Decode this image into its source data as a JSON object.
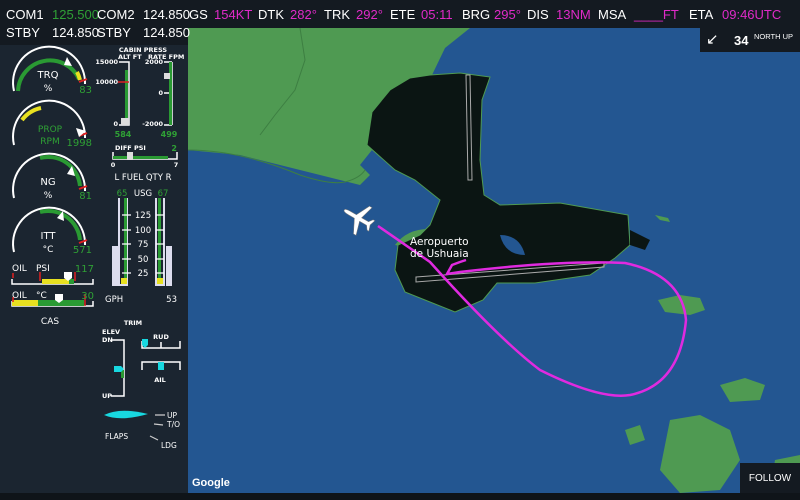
{
  "header": {
    "com1_label": "COM1",
    "com1_value": "125.500",
    "com2_label": "COM2",
    "com2_value": "124.850",
    "stby1_label": "STBY",
    "stby1_value": "124.850",
    "stby2_label": "STBY",
    "stby2_value": "124.850",
    "gs_label": "GS",
    "gs_value": "154KT",
    "dtk_label": "DTK",
    "dtk_value": "282°",
    "trk_label": "TRK",
    "trk_value": "292°",
    "ete_label": "ETE",
    "ete_value": "05:11",
    "brg_label": "BRG",
    "brg_value": "295°",
    "dis_label": "DIS",
    "dis_value": "13NM",
    "msa_label": "MSA",
    "msa_value": "____FT",
    "eta_label": "ETA",
    "eta_value": "09:46UTC"
  },
  "engine": {
    "trq": {
      "label": "TRQ",
      "unit": "%",
      "value": "83"
    },
    "prop": {
      "label": "PROP",
      "unit": "RPM",
      "value": "1998"
    },
    "ng": {
      "label": "NG",
      "unit": "%",
      "value": "81"
    },
    "itt": {
      "label": "ITT",
      "unit": "°C",
      "value": "571"
    },
    "oil_psi": {
      "label": "OIL",
      "unit": "PSI",
      "value": "117"
    },
    "oil_temp": {
      "label": "OIL",
      "unit": "°C",
      "value": "30"
    },
    "cas_label": "CAS"
  },
  "cabin": {
    "title": "CABIN PRESS",
    "alt_label": "ALT FT",
    "rate_label": "RATE FPM",
    "alt_ticks": [
      "15000",
      "10000",
      "0"
    ],
    "rate_ticks": [
      "2000",
      "0",
      "-2000"
    ],
    "alt_value": "584",
    "rate_value": "499",
    "diff_label": "DIFF PSI",
    "diff_value": "2",
    "diff_min": "0",
    "diff_max": "7"
  },
  "fuel": {
    "title": "L  FUEL  QTY  R",
    "unit": "USG",
    "left": "65",
    "right": "67",
    "ticks": [
      "125",
      "100",
      "75",
      "50",
      "25"
    ],
    "gph_label": "GPH",
    "gph_value": "53"
  },
  "trim": {
    "title": "TRIM",
    "elev": "ELEV",
    "dn": "DN",
    "up": "UP",
    "rud": "RUD",
    "ail": "AIL"
  },
  "flaps": {
    "label": "FLAPS",
    "up": "UP",
    "to": "T/O",
    "ldg": "LDG"
  },
  "map": {
    "heading": "34",
    "orientation": "NORTH UP",
    "airport_line1": "Aeropuerto",
    "airport_line2": "de Ushuaia",
    "attribution": "Google",
    "follow": "FOLLOW",
    "colors": {
      "water": "#235691",
      "land": "#4f9a52",
      "airport": "#0b1513",
      "route": "#e02ae0"
    }
  }
}
